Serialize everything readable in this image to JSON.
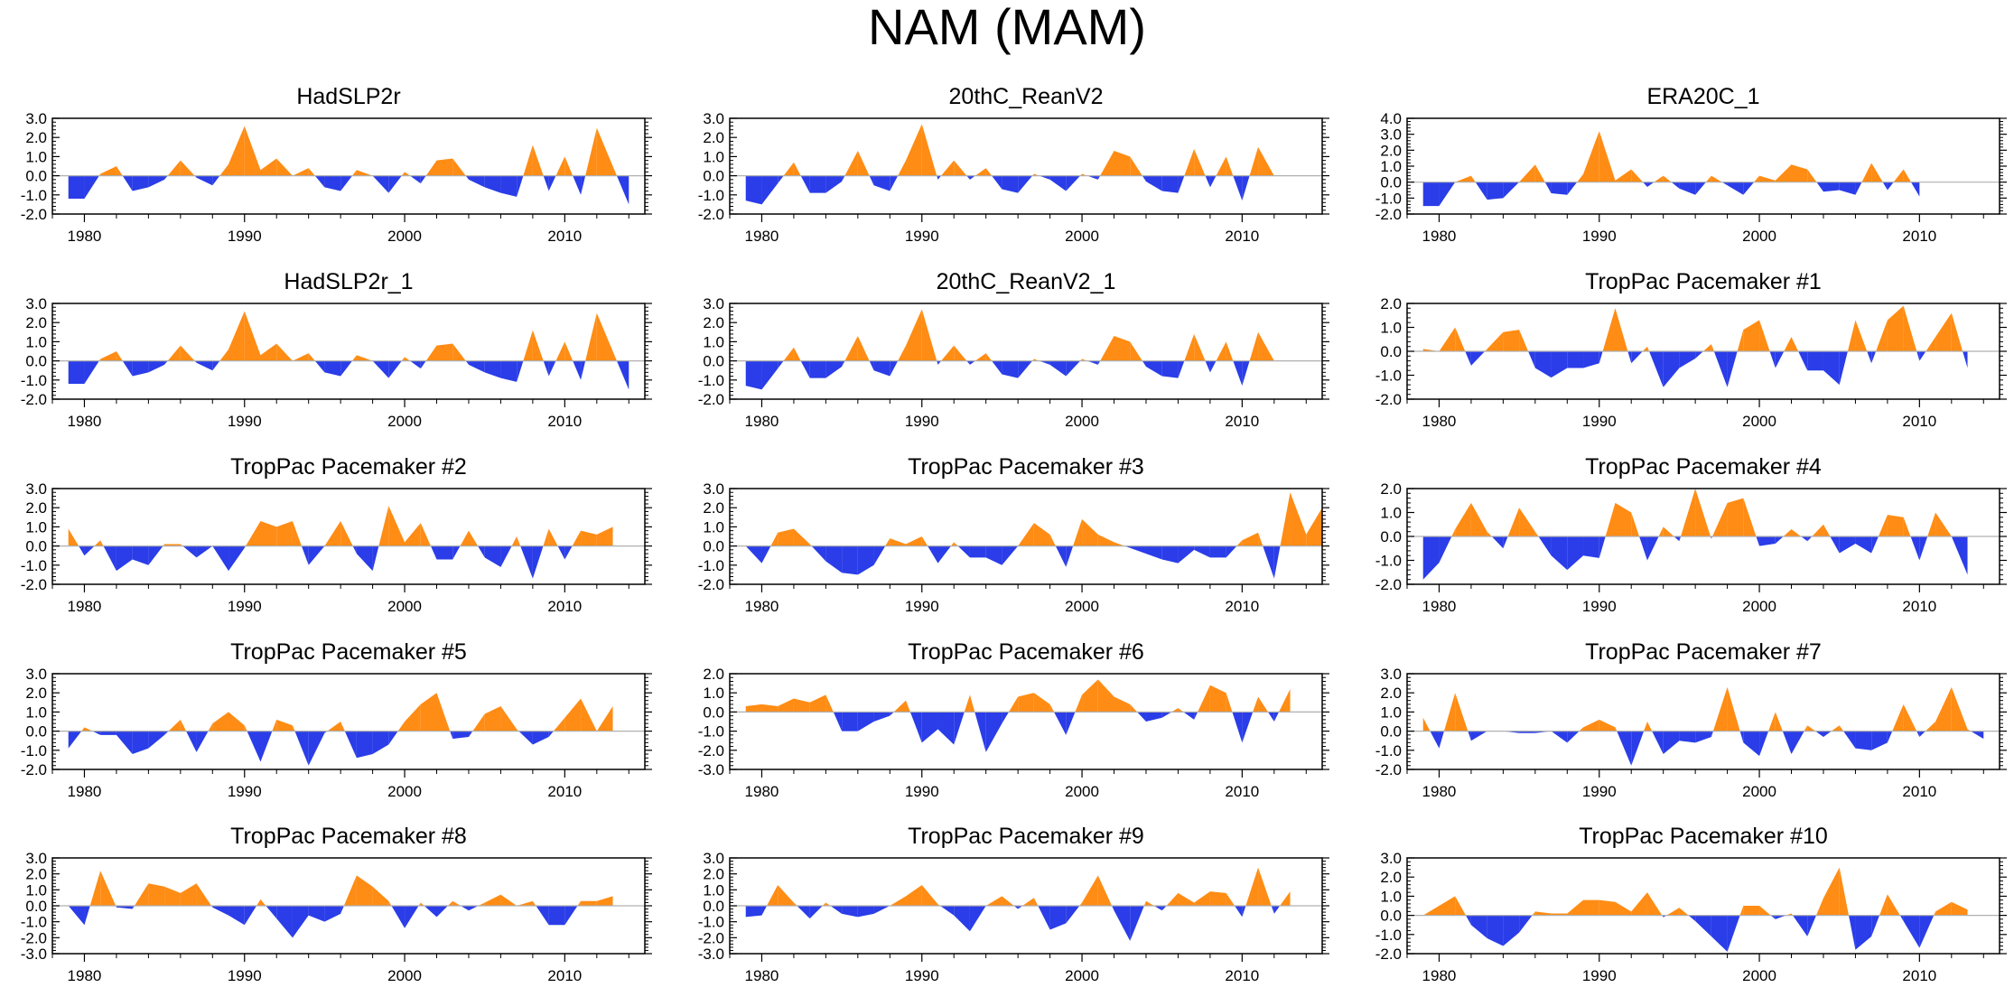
{
  "title": "NAM (MAM)",
  "colors": {
    "positive": "#ff8c14",
    "negative": "#2a3de8",
    "zero_line": "#b0b0b0",
    "frame": "#000000"
  },
  "chart_data": [
    {
      "type": "area",
      "title": "HadSLP2r",
      "ylim": [
        -2,
        3
      ],
      "yticks": [
        "3.0",
        "2.0",
        "1.0",
        "0.0",
        "-1.0",
        "-2.0"
      ],
      "xticks": [
        "1980",
        "1990",
        "2000",
        "2010"
      ],
      "x_start": 1979,
      "values": [
        -1.2,
        -1.2,
        0.1,
        0.5,
        -0.8,
        -0.6,
        -0.2,
        0.8,
        -0.1,
        -0.5,
        0.6,
        2.6,
        0.3,
        0.9,
        0.0,
        0.4,
        -0.6,
        -0.8,
        0.3,
        0.0,
        -0.9,
        0.2,
        -0.4,
        0.8,
        0.9,
        -0.2,
        -0.6,
        -0.9,
        -1.1,
        1.6,
        -0.8,
        1.0,
        -1.0,
        2.5,
        0.5,
        -1.5
      ]
    },
    {
      "type": "area",
      "title": "20thC_ReanV2",
      "ylim": [
        -2,
        3
      ],
      "yticks": [
        "3.0",
        "2.0",
        "1.0",
        "0.0",
        "-1.0",
        "-2.0"
      ],
      "xticks": [
        "1980",
        "1990",
        "2000",
        "2010"
      ],
      "x_start": 1979,
      "values": [
        -1.3,
        -1.5,
        -0.4,
        0.7,
        -0.9,
        -0.9,
        -0.3,
        1.3,
        -0.5,
        -0.8,
        0.8,
        2.7,
        -0.2,
        0.8,
        -0.2,
        0.4,
        -0.7,
        -0.9,
        0.1,
        -0.2,
        -0.8,
        0.1,
        -0.2,
        1.3,
        1.0,
        -0.3,
        -0.8,
        -0.9,
        1.4,
        -0.6,
        1.0,
        -1.3,
        1.5,
        0.0
      ]
    },
    {
      "type": "area",
      "title": "ERA20C_1",
      "ylim": [
        -2,
        4
      ],
      "yticks": [
        "4.0",
        "3.0",
        "2.0",
        "1.0",
        "0.0",
        "-1.0",
        "-2.0"
      ],
      "xticks": [
        "1980",
        "1990",
        "2000",
        "2010"
      ],
      "x_start": 1979,
      "values": [
        -1.5,
        -1.5,
        0.0,
        0.4,
        -1.1,
        -1.0,
        0.0,
        1.1,
        -0.7,
        -0.8,
        0.5,
        3.2,
        0.1,
        0.8,
        -0.3,
        0.4,
        -0.4,
        -0.8,
        0.4,
        -0.2,
        -0.8,
        0.4,
        0.1,
        1.1,
        0.8,
        -0.6,
        -0.5,
        -0.8,
        1.2,
        -0.5,
        0.8,
        -0.9
      ]
    },
    {
      "type": "area",
      "title": "HadSLP2r_1",
      "ylim": [
        -2,
        3
      ],
      "yticks": [
        "3.0",
        "2.0",
        "1.0",
        "0.0",
        "-1.0",
        "-2.0"
      ],
      "xticks": [
        "1980",
        "1990",
        "2000",
        "2010"
      ],
      "x_start": 1979,
      "values": [
        -1.2,
        -1.2,
        0.1,
        0.5,
        -0.8,
        -0.6,
        -0.2,
        0.8,
        -0.1,
        -0.5,
        0.6,
        2.6,
        0.3,
        0.9,
        0.0,
        0.4,
        -0.6,
        -0.8,
        0.3,
        0.0,
        -0.9,
        0.2,
        -0.4,
        0.8,
        0.9,
        -0.2,
        -0.6,
        -0.9,
        -1.1,
        1.6,
        -0.8,
        1.0,
        -1.0,
        2.5,
        0.5,
        -1.5
      ]
    },
    {
      "type": "area",
      "title": "20thC_ReanV2_1",
      "ylim": [
        -2,
        3
      ],
      "yticks": [
        "3.0",
        "2.0",
        "1.0",
        "0.0",
        "-1.0",
        "-2.0"
      ],
      "xticks": [
        "1980",
        "1990",
        "2000",
        "2010"
      ],
      "x_start": 1979,
      "values": [
        -1.3,
        -1.5,
        -0.4,
        0.7,
        -0.9,
        -0.9,
        -0.3,
        1.3,
        -0.5,
        -0.8,
        0.8,
        2.7,
        -0.2,
        0.8,
        -0.2,
        0.4,
        -0.7,
        -0.9,
        0.1,
        -0.2,
        -0.8,
        0.1,
        -0.2,
        1.3,
        1.0,
        -0.3,
        -0.8,
        -0.9,
        1.4,
        -0.6,
        1.0,
        -1.3,
        1.5,
        0.0
      ]
    },
    {
      "type": "area",
      "title": "TropPac Pacemaker #1",
      "ylim": [
        -2,
        2
      ],
      "yticks": [
        "2.0",
        "1.0",
        "0.0",
        "-1.0",
        "-2.0"
      ],
      "xticks": [
        "1980",
        "1990",
        "2000",
        "2010"
      ],
      "x_start": 1979,
      "values": [
        0.1,
        0.0,
        1.0,
        -0.6,
        0.1,
        0.8,
        0.9,
        -0.7,
        -1.1,
        -0.7,
        -0.7,
        -0.5,
        1.8,
        -0.5,
        0.2,
        -1.5,
        -0.7,
        -0.3,
        0.3,
        -1.5,
        0.9,
        1.3,
        -0.7,
        0.6,
        -0.8,
        -0.8,
        -1.4,
        1.3,
        -0.5,
        1.3,
        1.9,
        -0.4,
        0.6,
        1.6,
        -0.7
      ]
    },
    {
      "type": "area",
      "title": "TropPac Pacemaker #2",
      "ylim": [
        -2,
        3
      ],
      "yticks": [
        "3.0",
        "2.0",
        "1.0",
        "0.0",
        "-1.0",
        "-2.0"
      ],
      "xticks": [
        "1980",
        "1990",
        "2000",
        "2010"
      ],
      "x_start": 1979,
      "values": [
        0.9,
        -0.5,
        0.3,
        -1.3,
        -0.7,
        -1.0,
        0.1,
        0.1,
        -0.6,
        0.0,
        -1.3,
        -0.1,
        1.3,
        1.0,
        1.3,
        -1.0,
        0.0,
        1.3,
        -0.4,
        -1.3,
        2.1,
        0.2,
        1.2,
        -0.7,
        -0.7,
        0.8,
        -0.6,
        -1.1,
        0.5,
        -1.7,
        0.9,
        -0.7,
        0.8,
        0.6,
        1.0
      ]
    },
    {
      "type": "area",
      "title": "TropPac Pacemaker #3",
      "ylim": [
        -2,
        3
      ],
      "yticks": [
        "3.0",
        "2.0",
        "1.0",
        "0.0",
        "-1.0",
        "-2.0"
      ],
      "xticks": [
        "1980",
        "1990",
        "2000",
        "2010"
      ],
      "x_start": 1979,
      "values": [
        0.0,
        -0.9,
        0.7,
        0.9,
        0.1,
        -0.8,
        -1.4,
        -1.5,
        -1.0,
        0.4,
        0.1,
        0.5,
        -0.9,
        0.2,
        -0.6,
        -0.6,
        -1.0,
        0.0,
        1.2,
        0.6,
        -1.1,
        1.4,
        0.6,
        0.2,
        -0.1,
        -0.4,
        -0.7,
        -0.9,
        -0.2,
        -0.6,
        -0.6,
        0.3,
        0.7,
        -1.7,
        2.8,
        0.6,
        2.0
      ]
    },
    {
      "type": "area",
      "title": "TropPac Pacemaker #4",
      "ylim": [
        -2,
        2
      ],
      "yticks": [
        "2.0",
        "1.0",
        "0.0",
        "-1.0",
        "-2.0"
      ],
      "xticks": [
        "1980",
        "1990",
        "2000",
        "2010"
      ],
      "x_start": 1979,
      "values": [
        -1.8,
        -1.1,
        0.3,
        1.4,
        0.2,
        -0.5,
        1.2,
        0.2,
        -0.8,
        -1.4,
        -0.8,
        -0.9,
        1.4,
        1.0,
        -1.0,
        0.4,
        -0.2,
        2.0,
        -0.1,
        1.4,
        1.6,
        -0.4,
        -0.3,
        0.3,
        -0.2,
        0.5,
        -0.7,
        -0.3,
        -0.7,
        0.9,
        0.8,
        -1.0,
        1.0,
        0.0,
        -1.6
      ]
    },
    {
      "type": "area",
      "title": "TropPac Pacemaker #5",
      "ylim": [
        -2,
        3
      ],
      "yticks": [
        "3.0",
        "2.0",
        "1.0",
        "0.0",
        "-1.0",
        "-2.0"
      ],
      "xticks": [
        "1980",
        "1990",
        "2000",
        "2010"
      ],
      "x_start": 1979,
      "values": [
        -0.9,
        0.2,
        -0.2,
        -0.2,
        -1.2,
        -0.9,
        -0.2,
        0.6,
        -1.1,
        0.4,
        1.0,
        0.3,
        -1.6,
        0.6,
        0.3,
        -1.8,
        -0.1,
        0.5,
        -1.4,
        -1.2,
        -0.7,
        0.5,
        1.4,
        2.0,
        -0.4,
        -0.3,
        0.9,
        1.3,
        0.1,
        -0.7,
        -0.3,
        0.7,
        1.7,
        0.0,
        1.3
      ]
    },
    {
      "type": "area",
      "title": "TropPac Pacemaker #6",
      "ylim": [
        -3,
        2
      ],
      "yticks": [
        "2.0",
        "1.0",
        "0.0",
        "-1.0",
        "-2.0",
        "-3.0"
      ],
      "xticks": [
        "1980",
        "1990",
        "2000",
        "2010"
      ],
      "x_start": 1979,
      "values": [
        0.3,
        0.4,
        0.3,
        0.7,
        0.5,
        0.9,
        -1.0,
        -1.0,
        -0.5,
        -0.2,
        0.6,
        -1.6,
        -0.9,
        -1.7,
        0.9,
        -2.1,
        -0.6,
        0.8,
        1.0,
        0.4,
        -1.2,
        0.9,
        1.7,
        0.8,
        0.4,
        -0.5,
        -0.3,
        0.2,
        -0.4,
        1.4,
        1.0,
        -1.6,
        0.8,
        -0.5,
        1.2
      ]
    },
    {
      "type": "area",
      "title": "TropPac Pacemaker #7",
      "ylim": [
        -2,
        3
      ],
      "yticks": [
        "3.0",
        "2.0",
        "1.0",
        "0.0",
        "-1.0",
        "-2.0"
      ],
      "xticks": [
        "1980",
        "1990",
        "2000",
        "2010"
      ],
      "x_start": 1979,
      "values": [
        0.7,
        -0.9,
        2.0,
        -0.5,
        0.0,
        0.0,
        -0.1,
        -0.1,
        0.0,
        -0.6,
        0.2,
        0.6,
        0.2,
        -1.8,
        0.5,
        -1.2,
        -0.5,
        -0.6,
        -0.3,
        2.3,
        -0.6,
        -1.3,
        1.0,
        -1.2,
        0.3,
        -0.3,
        0.3,
        -0.9,
        -1.0,
        -0.6,
        1.4,
        -0.3,
        0.5,
        2.3,
        0.1,
        -0.4
      ]
    },
    {
      "type": "area",
      "title": "TropPac Pacemaker #8",
      "ylim": [
        -3,
        3
      ],
      "yticks": [
        "3.0",
        "2.0",
        "1.0",
        "0.0",
        "-1.0",
        "-2.0",
        "-3.0"
      ],
      "xticks": [
        "1980",
        "1990",
        "2000",
        "2010"
      ],
      "x_start": 1979,
      "values": [
        0.0,
        -1.2,
        2.2,
        -0.1,
        -0.2,
        1.4,
        1.2,
        0.8,
        1.4,
        -0.1,
        -0.6,
        -1.2,
        0.4,
        -0.8,
        -2.0,
        -0.6,
        -1.0,
        -0.5,
        1.9,
        1.2,
        0.3,
        -1.4,
        0.2,
        -0.7,
        0.3,
        -0.3,
        0.2,
        0.7,
        0.0,
        0.3,
        -1.2,
        -1.2,
        0.3,
        0.3,
        0.6
      ]
    },
    {
      "type": "area",
      "title": "TropPac Pacemaker #9",
      "ylim": [
        -3,
        3
      ],
      "yticks": [
        "3.0",
        "2.0",
        "1.0",
        "0.0",
        "-1.0",
        "-2.0",
        "-3.0"
      ],
      "xticks": [
        "1980",
        "1990",
        "2000",
        "2010"
      ],
      "x_start": 1979,
      "values": [
        -0.7,
        -0.6,
        1.3,
        0.2,
        -0.8,
        0.2,
        -0.5,
        -0.7,
        -0.5,
        0.0,
        0.6,
        1.3,
        0.1,
        -0.6,
        -1.6,
        0.0,
        0.6,
        -0.2,
        0.5,
        -1.5,
        -1.1,
        0.2,
        1.9,
        -0.3,
        -2.2,
        0.3,
        -0.3,
        0.8,
        0.2,
        0.9,
        0.8,
        -0.7,
        2.4,
        -0.5,
        0.9
      ]
    },
    {
      "type": "area",
      "title": "TropPac Pacemaker #10",
      "ylim": [
        -2,
        3
      ],
      "yticks": [
        "3.0",
        "2.0",
        "1.0",
        "0.0",
        "-1.0",
        "-2.0"
      ],
      "xticks": [
        "1980",
        "1990",
        "2000",
        "2010"
      ],
      "x_start": 1979,
      "values": [
        0.0,
        0.5,
        1.0,
        -0.5,
        -1.2,
        -1.6,
        -0.9,
        0.2,
        0.1,
        0.1,
        0.8,
        0.8,
        0.7,
        0.2,
        1.2,
        -0.1,
        0.4,
        -0.3,
        -1.1,
        -1.9,
        0.5,
        0.5,
        -0.2,
        0.1,
        -1.1,
        0.9,
        2.5,
        -1.8,
        -1.1,
        1.1,
        -0.3,
        -1.7,
        0.2,
        0.7,
        0.3
      ]
    }
  ]
}
